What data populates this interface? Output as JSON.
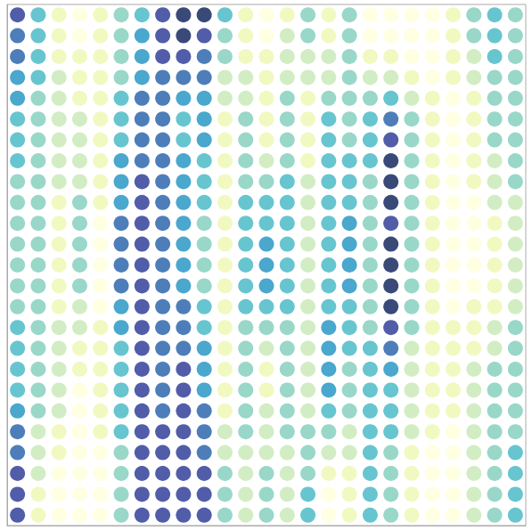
{
  "chart_data": {
    "type": "scatter",
    "color": "YlGnBu",
    "xlim": [
      0,
      1
    ],
    "ylim": [
      0,
      1
    ],
    "tick_labels": false,
    "grid": false,
    "marker": "circle",
    "color_range": [
      1,
      9
    ],
    "x": [
      0.02,
      0.06,
      0.1,
      0.14,
      0.18,
      0.22,
      0.26,
      0.3,
      0.34,
      0.38,
      0.42,
      0.46,
      0.5,
      0.54,
      0.58,
      0.62,
      0.66,
      0.7,
      0.74,
      0.78,
      0.82,
      0.86,
      0.9,
      0.94,
      0.98
    ],
    "y": [
      0.98,
      0.94,
      0.9,
      0.86,
      0.82,
      0.78,
      0.74,
      0.7,
      0.66,
      0.62,
      0.58,
      0.54,
      0.5,
      0.46,
      0.42,
      0.38,
      0.34,
      0.3,
      0.26,
      0.22,
      0.18,
      0.14,
      0.1,
      0.06,
      0.02
    ],
    "values": [
      [
        8,
        5,
        2,
        1,
        2,
        4,
        5,
        8,
        9,
        9,
        5,
        2,
        1,
        2,
        4,
        2,
        4,
        1,
        1,
        1,
        1,
        2,
        4,
        5,
        4
      ],
      [
        7,
        5,
        2,
        1,
        2,
        4,
        6,
        8,
        9,
        8,
        4,
        2,
        1,
        3,
        4,
        2,
        4,
        1,
        1,
        1,
        1,
        2,
        4,
        5,
        4
      ],
      [
        7,
        5,
        2,
        2,
        2,
        4,
        6,
        8,
        8,
        7,
        4,
        2,
        2,
        3,
        3,
        3,
        4,
        2,
        2,
        1,
        1,
        2,
        3,
        5,
        4
      ],
      [
        6,
        5,
        3,
        2,
        2,
        4,
        6,
        7,
        7,
        7,
        3,
        3,
        2,
        3,
        3,
        3,
        4,
        3,
        3,
        2,
        1,
        2,
        3,
        4,
        4
      ],
      [
        6,
        4,
        3,
        2,
        2,
        5,
        7,
        7,
        6,
        6,
        3,
        3,
        2,
        4,
        2,
        4,
        4,
        4,
        5,
        3,
        2,
        1,
        2,
        4,
        4
      ],
      [
        5,
        4,
        3,
        3,
        2,
        5,
        7,
        7,
        5,
        6,
        2,
        4,
        2,
        4,
        2,
        5,
        4,
        5,
        7,
        4,
        2,
        1,
        2,
        4,
        4
      ],
      [
        5,
        4,
        3,
        3,
        2,
        5,
        7,
        7,
        5,
        6,
        2,
        4,
        2,
        4,
        2,
        5,
        4,
        5,
        8,
        4,
        2,
        1,
        2,
        4,
        4
      ],
      [
        5,
        4,
        3,
        3,
        2,
        6,
        7,
        7,
        6,
        5,
        2,
        4,
        3,
        4,
        2,
        5,
        5,
        5,
        9,
        4,
        2,
        1,
        2,
        3,
        4
      ],
      [
        4,
        4,
        3,
        3,
        2,
        6,
        8,
        7,
        6,
        5,
        2,
        4,
        4,
        5,
        3,
        5,
        5,
        4,
        9,
        4,
        2,
        1,
        2,
        3,
        4
      ],
      [
        4,
        4,
        2,
        4,
        2,
        6,
        8,
        7,
        6,
        5,
        2,
        5,
        5,
        5,
        3,
        5,
        5,
        4,
        9,
        4,
        2,
        1,
        1,
        3,
        3
      ],
      [
        4,
        4,
        2,
        4,
        1,
        7,
        8,
        7,
        6,
        4,
        2,
        5,
        5,
        5,
        3,
        5,
        6,
        4,
        8,
        4,
        2,
        1,
        1,
        2,
        3
      ],
      [
        4,
        4,
        2,
        4,
        1,
        7,
        8,
        7,
        6,
        4,
        2,
        5,
        6,
        5,
        3,
        5,
        6,
        4,
        9,
        4,
        2,
        1,
        1,
        2,
        3
      ],
      [
        4,
        4,
        2,
        4,
        1,
        7,
        8,
        7,
        6,
        4,
        2,
        5,
        6,
        5,
        3,
        5,
        6,
        4,
        9,
        4,
        2,
        1,
        1,
        2,
        3
      ],
      [
        4,
        4,
        2,
        4,
        1,
        7,
        8,
        7,
        6,
        4,
        2,
        5,
        6,
        5,
        3,
        5,
        6,
        4,
        9,
        4,
        2,
        1,
        1,
        2,
        3
      ],
      [
        4,
        4,
        2,
        3,
        1,
        6,
        8,
        7,
        7,
        5,
        2,
        5,
        5,
        5,
        3,
        5,
        5,
        4,
        9,
        4,
        2,
        1,
        2,
        2,
        3
      ],
      [
        5,
        4,
        3,
        3,
        2,
        6,
        8,
        7,
        7,
        5,
        2,
        4,
        4,
        4,
        3,
        6,
        5,
        4,
        8,
        4,
        2,
        2,
        2,
        3,
        4
      ],
      [
        5,
        4,
        3,
        2,
        2,
        5,
        8,
        7,
        7,
        6,
        2,
        4,
        3,
        4,
        3,
        6,
        5,
        5,
        7,
        3,
        2,
        2,
        2,
        3,
        4
      ],
      [
        5,
        4,
        3,
        2,
        2,
        5,
        8,
        7,
        8,
        6,
        2,
        4,
        2,
        4,
        3,
        6,
        4,
        5,
        6,
        3,
        2,
        2,
        3,
        4,
        4
      ],
      [
        5,
        4,
        3,
        1,
        2,
        5,
        8,
        7,
        8,
        6,
        2,
        4,
        2,
        4,
        3,
        6,
        4,
        5,
        5,
        3,
        2,
        2,
        3,
        4,
        4
      ],
      [
        6,
        4,
        3,
        1,
        2,
        5,
        8,
        7,
        8,
        7,
        2,
        4,
        3,
        4,
        3,
        5,
        4,
        5,
        5,
        3,
        2,
        2,
        3,
        4,
        4
      ],
      [
        7,
        3,
        2,
        1,
        2,
        5,
        8,
        8,
        8,
        7,
        3,
        4,
        3,
        4,
        4,
        4,
        3,
        5,
        5,
        3,
        2,
        1,
        3,
        4,
        4
      ],
      [
        7,
        3,
        2,
        1,
        1,
        4,
        8,
        8,
        8,
        7,
        3,
        3,
        3,
        3,
        4,
        3,
        3,
        5,
        4,
        2,
        1,
        1,
        3,
        4,
        5
      ],
      [
        8,
        3,
        1,
        1,
        1,
        4,
        8,
        8,
        8,
        8,
        4,
        3,
        4,
        3,
        4,
        2,
        2,
        5,
        4,
        2,
        1,
        1,
        3,
        4,
        5
      ],
      [
        8,
        2,
        1,
        1,
        1,
        4,
        8,
        8,
        8,
        8,
        4,
        3,
        4,
        3,
        5,
        1,
        2,
        5,
        4,
        2,
        1,
        1,
        3,
        4,
        5
      ],
      [
        8,
        2,
        1,
        1,
        1,
        4,
        8,
        8,
        8,
        8,
        4,
        3,
        4,
        3,
        5,
        1,
        2,
        5,
        4,
        2,
        1,
        1,
        3,
        4,
        5
      ]
    ]
  }
}
